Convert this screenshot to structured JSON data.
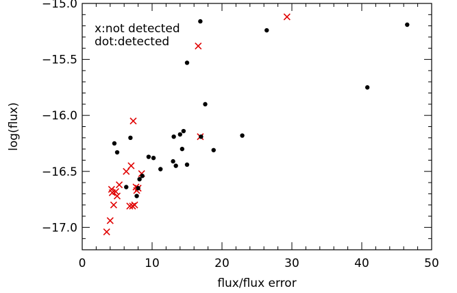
{
  "chart_data": {
    "type": "scatter",
    "xlabel": "flux/flux error",
    "ylabel": "log(flux)",
    "xlim": [
      0,
      50
    ],
    "ylim": [
      -17.2,
      -15.0
    ],
    "xticks": [
      0,
      10,
      20,
      30,
      40,
      50
    ],
    "yticks": [
      -17.0,
      -16.5,
      -16.0,
      -15.5,
      -15.0
    ],
    "xtick_labels": [
      "0",
      "10",
      "20",
      "30",
      "40",
      "50"
    ],
    "ytick_labels": [
      "−17.0",
      "−16.5",
      "−16.0",
      "−15.5",
      "−15.0"
    ],
    "annotations": [
      "x:not detected",
      "dot:detected"
    ],
    "grid": false,
    "series": [
      {
        "marker": "x",
        "color": "#e00000",
        "x": [
          3.5,
          4.0,
          4.2,
          4.3,
          4.5,
          4.8,
          5.0,
          5.3,
          6.3,
          6.8,
          7.0,
          7.2,
          7.3,
          7.5,
          7.7,
          7.8,
          8.0,
          8.5,
          16.6,
          16.9,
          29.3
        ],
        "y": [
          -17.04,
          -16.94,
          -16.66,
          -16.69,
          -16.8,
          -16.68,
          -16.72,
          -16.62,
          -16.5,
          -16.81,
          -16.45,
          -16.81,
          -16.05,
          -16.8,
          -16.64,
          -16.67,
          -16.65,
          -16.52,
          -15.38,
          -16.19,
          -15.12
        ]
      },
      {
        "marker": "dot",
        "color": "#000000",
        "x": [
          4.6,
          5.0,
          6.3,
          6.9,
          7.8,
          8.0,
          8.2,
          8.6,
          9.5,
          10.2,
          11.2,
          13.0,
          13.1,
          13.4,
          14.0,
          14.3,
          14.5,
          15.0,
          15.0,
          16.9,
          17.0,
          17.6,
          18.8,
          22.9,
          26.4,
          40.8,
          46.5
        ],
        "y": [
          -16.25,
          -16.33,
          -16.64,
          -16.2,
          -16.72,
          -16.65,
          -16.57,
          -16.54,
          -16.37,
          -16.38,
          -16.48,
          -16.41,
          -16.19,
          -16.45,
          -16.17,
          -16.3,
          -16.14,
          -16.44,
          -15.53,
          -15.16,
          -16.19,
          -15.9,
          -16.31,
          -16.18,
          -15.24,
          -15.75,
          -15.19
        ]
      }
    ]
  }
}
